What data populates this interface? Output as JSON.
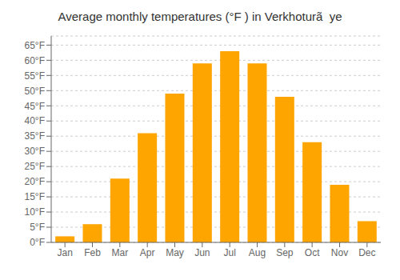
{
  "chart_data": {
    "type": "bar",
    "title": "Average monthly temperatures (°F ) in Verkhoturã  ye",
    "categories": [
      "Jan",
      "Feb",
      "Mar",
      "Apr",
      "May",
      "Jun",
      "Jul",
      "Aug",
      "Sep",
      "Oct",
      "Nov",
      "Dec"
    ],
    "values": [
      2,
      6,
      21,
      36,
      49,
      59,
      63,
      59,
      48,
      33,
      19,
      7
    ],
    "color": "#FFA500",
    "ylim": [
      0,
      68
    ],
    "yticks": [
      {
        "value": 0,
        "label": "0°F"
      },
      {
        "value": 5,
        "label": "5°F"
      },
      {
        "value": 10,
        "label": "10°F"
      },
      {
        "value": 15,
        "label": "15°F"
      },
      {
        "value": 20,
        "label": "20°F"
      },
      {
        "value": 25,
        "label": "25°F"
      },
      {
        "value": 30,
        "label": "30°F"
      },
      {
        "value": 35,
        "label": "35°F"
      },
      {
        "value": 40,
        "label": "40°F"
      },
      {
        "value": 45,
        "label": "45°F"
      },
      {
        "value": 50,
        "label": "50°F"
      },
      {
        "value": 55,
        "label": "55°F"
      },
      {
        "value": 60,
        "label": "60°F"
      },
      {
        "value": 65,
        "label": "65°F"
      }
    ],
    "grid": true
  }
}
